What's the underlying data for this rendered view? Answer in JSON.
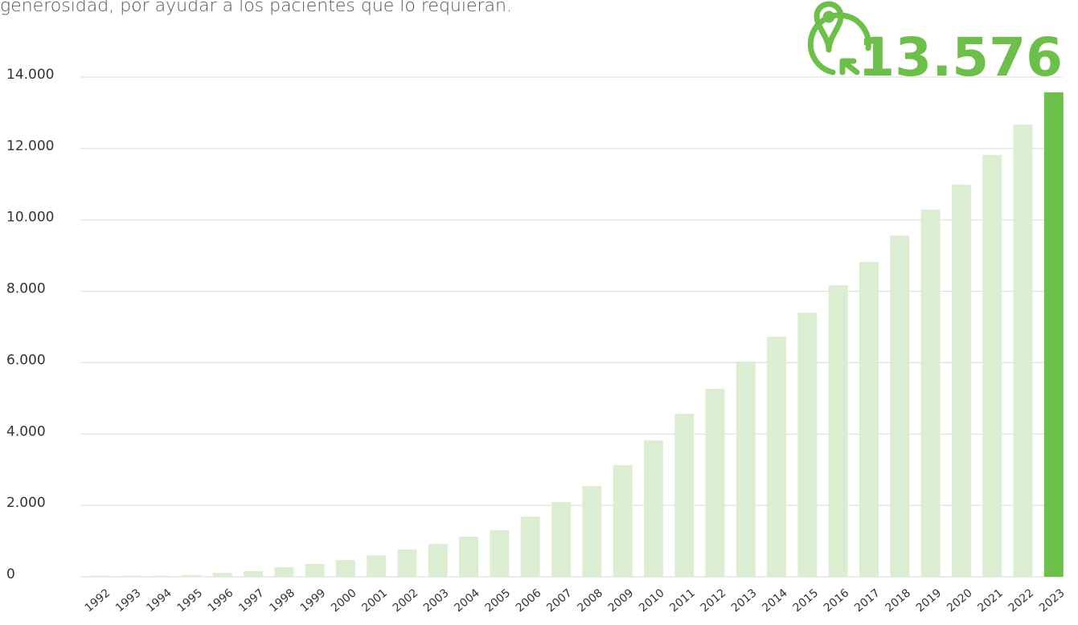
{
  "chart_data": {
    "type": "bar",
    "subtitle": "generosidad, por ayudar a los pacientes que lo requieran.",
    "annotation": "13.576",
    "categories": [
      "1992",
      "1993",
      "1994",
      "1995",
      "1996",
      "1997",
      "1998",
      "1999",
      "2000",
      "2001",
      "2002",
      "2003",
      "2004",
      "2005",
      "2006",
      "2007",
      "2008",
      "2009",
      "2010",
      "2011",
      "2012",
      "2013",
      "2014",
      "2015",
      "2016",
      "2017",
      "2018",
      "2019",
      "2020",
      "2021",
      "2022",
      "2023"
    ],
    "values": [
      30,
      30,
      30,
      50,
      110,
      160,
      270,
      360,
      470,
      600,
      760,
      920,
      1120,
      1300,
      1690,
      2090,
      2540,
      3130,
      3820,
      4570,
      5270,
      6030,
      6730,
      7400,
      8170,
      8820,
      9560,
      10290,
      10990,
      11820,
      12670,
      13576
    ],
    "colors": [
      "#dbeed2",
      "#dbeed2",
      "#dbeed2",
      "#dbeed2",
      "#dbeed2",
      "#dbeed2",
      "#dbeed2",
      "#dbeed2",
      "#dbeed2",
      "#dbeed2",
      "#dbeed2",
      "#dbeed2",
      "#dbeed2",
      "#dbeed2",
      "#dbeed2",
      "#dbeed2",
      "#dbeed2",
      "#dbeed2",
      "#dbeed2",
      "#dbeed2",
      "#dbeed2",
      "#dbeed2",
      "#dbeed2",
      "#dbeed2",
      "#dbeed2",
      "#dbeed2",
      "#dbeed2",
      "#dbeed2",
      "#dbeed2",
      "#dbeed2",
      "#dbeed2",
      "#6cc04a"
    ],
    "ylim": [
      0,
      14000
    ],
    "yticks": [
      0,
      {
        "value": 2000,
        "label": "2.000"
      },
      {
        "value": 4000,
        "label": "4.000"
      },
      {
        "value": 6000,
        "label": "6.000"
      },
      {
        "value": 8000,
        "label": "8.000"
      },
      {
        "value": 10000,
        "label": "10.000"
      },
      {
        "value": 12000,
        "label": "12.000"
      },
      {
        "value": 14000,
        "label": "14.000"
      }
    ],
    "grid": true
  }
}
